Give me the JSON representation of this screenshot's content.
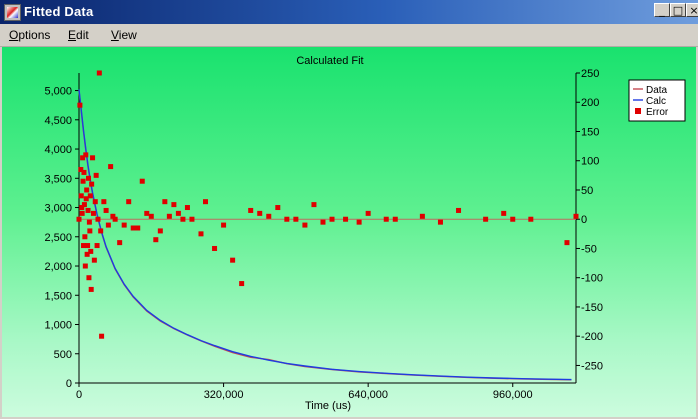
{
  "window": {
    "title": "Fitted Data",
    "controls": [
      "_",
      "□",
      "×"
    ]
  },
  "menu": {
    "items": [
      {
        "label": "Options",
        "underline": "O",
        "rest": "ptions"
      },
      {
        "label": "Edit",
        "underline": "E",
        "rest": "dit"
      },
      {
        "label": "View",
        "underline": "V",
        "rest": "iew"
      }
    ]
  },
  "colors": {
    "data_line": "#c44a52",
    "calc_line": "#1f3ce0",
    "error_marker": "#e00000",
    "zero_line": "#c06a60",
    "title_text": "#1f3ce0"
  },
  "chart_data": {
    "type": "scatter",
    "title": "Calculated Fit",
    "xlabel": "Time (us)",
    "xlim": [
      0,
      1100000
    ],
    "x_ticks": [
      0,
      320000,
      640000,
      960000
    ],
    "x_tick_labels": [
      "0",
      "320,000",
      "640,000",
      "960,000"
    ],
    "y_left_lim": [
      0,
      5300
    ],
    "y_left_ticks": [
      0,
      500,
      1000,
      1500,
      2000,
      2500,
      3000,
      3500,
      4000,
      4500,
      5000
    ],
    "y_left_tick_labels": [
      "0",
      "500",
      "1,000",
      "1,500",
      "2,000",
      "2,500",
      "3,000",
      "3,500",
      "4,000",
      "4,500",
      "5,000"
    ],
    "y_right_lim": [
      -280,
      250
    ],
    "y_right_ticks": [
      250,
      200,
      150,
      100,
      50,
      0,
      -50,
      -100,
      -150,
      -200,
      -250
    ],
    "y_right_tick_labels": [
      "250",
      "200",
      "150",
      "100",
      "50",
      "0",
      "-50",
      "-100",
      "-150",
      "-200",
      "-250"
    ],
    "legend": [
      "Data",
      "Calc",
      "Error"
    ],
    "legend_position": "right",
    "series": [
      {
        "name": "Data",
        "axis": "left",
        "x": [
          0,
          5000,
          10000,
          15000,
          20000,
          25000,
          30000,
          40000,
          50000,
          60000,
          80000,
          100000,
          120000,
          150000,
          180000,
          210000,
          240000,
          270000,
          300000,
          340000,
          380000,
          420000,
          460000,
          500000,
          560000,
          620000,
          680000,
          740000,
          800000,
          860000,
          920000,
          980000,
          1040000,
          1090000
        ],
        "y": [
          5000,
          4640,
          4300,
          3980,
          3700,
          3450,
          3230,
          2870,
          2570,
          2320,
          1950,
          1680,
          1470,
          1230,
          1060,
          930,
          820,
          720,
          630,
          520,
          440,
          400,
          330,
          280,
          230,
          190,
          160,
          135,
          115,
          95,
          80,
          70,
          62,
          55
        ]
      },
      {
        "name": "Calc",
        "axis": "left",
        "x": [
          0,
          5000,
          10000,
          15000,
          20000,
          25000,
          30000,
          40000,
          50000,
          60000,
          80000,
          100000,
          120000,
          150000,
          180000,
          210000,
          240000,
          270000,
          300000,
          340000,
          380000,
          420000,
          460000,
          500000,
          560000,
          620000,
          680000,
          740000,
          800000,
          860000,
          920000,
          980000,
          1040000,
          1090000
        ],
        "y": [
          5020,
          4660,
          4320,
          4000,
          3720,
          3470,
          3250,
          2880,
          2580,
          2330,
          1960,
          1690,
          1480,
          1240,
          1070,
          935,
          825,
          725,
          640,
          535,
          455,
          390,
          335,
          290,
          235,
          195,
          165,
          140,
          118,
          100,
          85,
          74,
          65,
          58
        ]
      },
      {
        "name": "Error",
        "axis": "right",
        "x": [
          0,
          2000,
          4000,
          5000,
          6000,
          7000,
          8000,
          9000,
          10000,
          11000,
          12000,
          13000,
          14000,
          15000,
          16000,
          17000,
          18000,
          19000,
          20000,
          21000,
          22000,
          23000,
          24000,
          25000,
          26000,
          27000,
          28000,
          30000,
          32000,
          34000,
          36000,
          38000,
          40000,
          42000,
          45000,
          48000,
          50000,
          55000,
          60000,
          65000,
          70000,
          75000,
          80000,
          90000,
          100000,
          110000,
          120000,
          130000,
          140000,
          150000,
          160000,
          170000,
          180000,
          190000,
          200000,
          210000,
          220000,
          230000,
          240000,
          250000,
          270000,
          280000,
          300000,
          320000,
          340000,
          360000,
          380000,
          400000,
          420000,
          440000,
          460000,
          480000,
          500000,
          520000,
          540000,
          560000,
          590000,
          620000,
          640000,
          680000,
          700000,
          760000,
          800000,
          840000,
          900000,
          940000,
          960000,
          1000000,
          1080000,
          1100000
        ],
        "y": [
          0,
          195,
          85,
          40,
          20,
          10,
          105,
          65,
          -45,
          80,
          25,
          -30,
          -80,
          110,
          35,
          50,
          -60,
          -45,
          15,
          70,
          -100,
          -5,
          -20,
          40,
          -55,
          -120,
          60,
          105,
          10,
          -70,
          30,
          75,
          -45,
          0,
          250,
          -20,
          -200,
          30,
          15,
          -10,
          90,
          5,
          0,
          -40,
          -10,
          30,
          -15,
          -15,
          65,
          10,
          5,
          -35,
          -20,
          30,
          5,
          25,
          10,
          0,
          20,
          0,
          -25,
          30,
          -50,
          -10,
          -70,
          -110,
          15,
          10,
          5,
          20,
          0,
          0,
          -10,
          25,
          -5,
          0,
          0,
          -5,
          10,
          0,
          0,
          5,
          -5,
          15,
          0,
          10,
          0,
          0,
          -40,
          5
        ]
      }
    ]
  }
}
